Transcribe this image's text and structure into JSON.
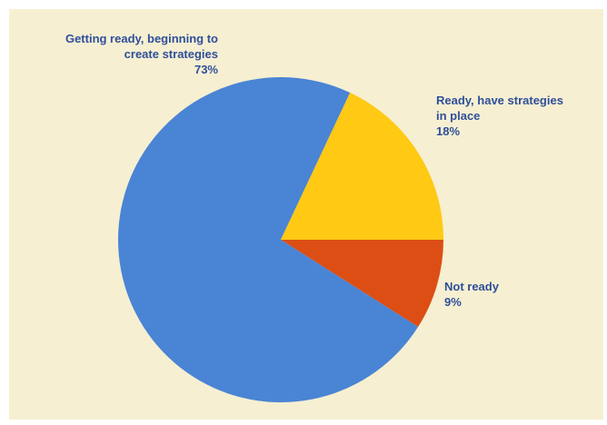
{
  "chart_data": {
    "type": "pie",
    "title": "",
    "slices": [
      {
        "label_lines": [
          "Getting ready, beginning to",
          "create strategies"
        ],
        "value": 73,
        "value_label": "73%",
        "color": "#4a84d4"
      },
      {
        "label_lines": [
          "Ready, have strategies",
          "in place"
        ],
        "value": 18,
        "value_label": "18%",
        "color": "#ffc914"
      },
      {
        "label_lines": [
          "Not ready"
        ],
        "value": 9,
        "value_label": "9%",
        "color": "#dc4e14"
      }
    ],
    "legend": "none",
    "label_color": "#2f4f9a",
    "background_color": "#f6efd2"
  }
}
